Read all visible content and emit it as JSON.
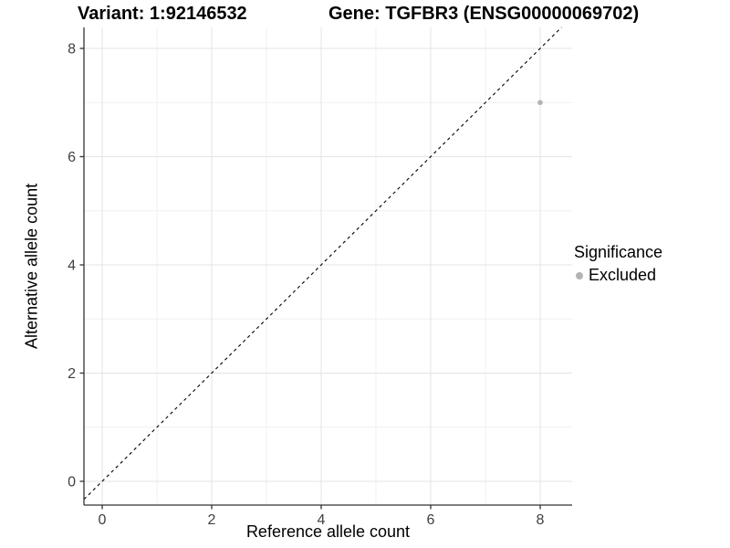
{
  "figure": {
    "title_left": "Variant: 1:92146532",
    "title_right": "Gene: TGFBR3 (ENSG00000069702)"
  },
  "chart_data": {
    "type": "scatter",
    "title": "Variant: 1:92146532        Gene: TGFBR3 (ENSG00000069702)",
    "xlabel": "Reference allele count",
    "ylabel": "Alternative allele count",
    "xlim": [
      -0.35,
      8.58
    ],
    "ylim": [
      -0.44,
      8.39
    ],
    "x_ticks": [
      0,
      2,
      4,
      6,
      8
    ],
    "y_ticks": [
      0,
      2,
      4,
      6,
      8
    ],
    "x_minor_ticks": [
      1,
      3,
      5,
      7
    ],
    "y_minor_ticks": [
      1,
      3,
      5,
      7
    ],
    "grid": true,
    "reference_line": {
      "kind": "identity y=x",
      "style": "dashed",
      "color": "#000000"
    },
    "series": [
      {
        "name": "Excluded",
        "color": "#b3b3b3",
        "points": [
          {
            "x": 8,
            "y": 7
          }
        ]
      }
    ],
    "legend": {
      "title": "Significance",
      "position": "right",
      "items": [
        {
          "label": "Excluded",
          "color": "#b3b3b3"
        }
      ]
    }
  },
  "colors": {
    "background": "#ffffff",
    "grid_major": "#e3e3e3",
    "grid_minor": "#f0f0f0",
    "axis_line": "#333333",
    "tick_label": "#404040",
    "point": "#b3b3b3"
  }
}
